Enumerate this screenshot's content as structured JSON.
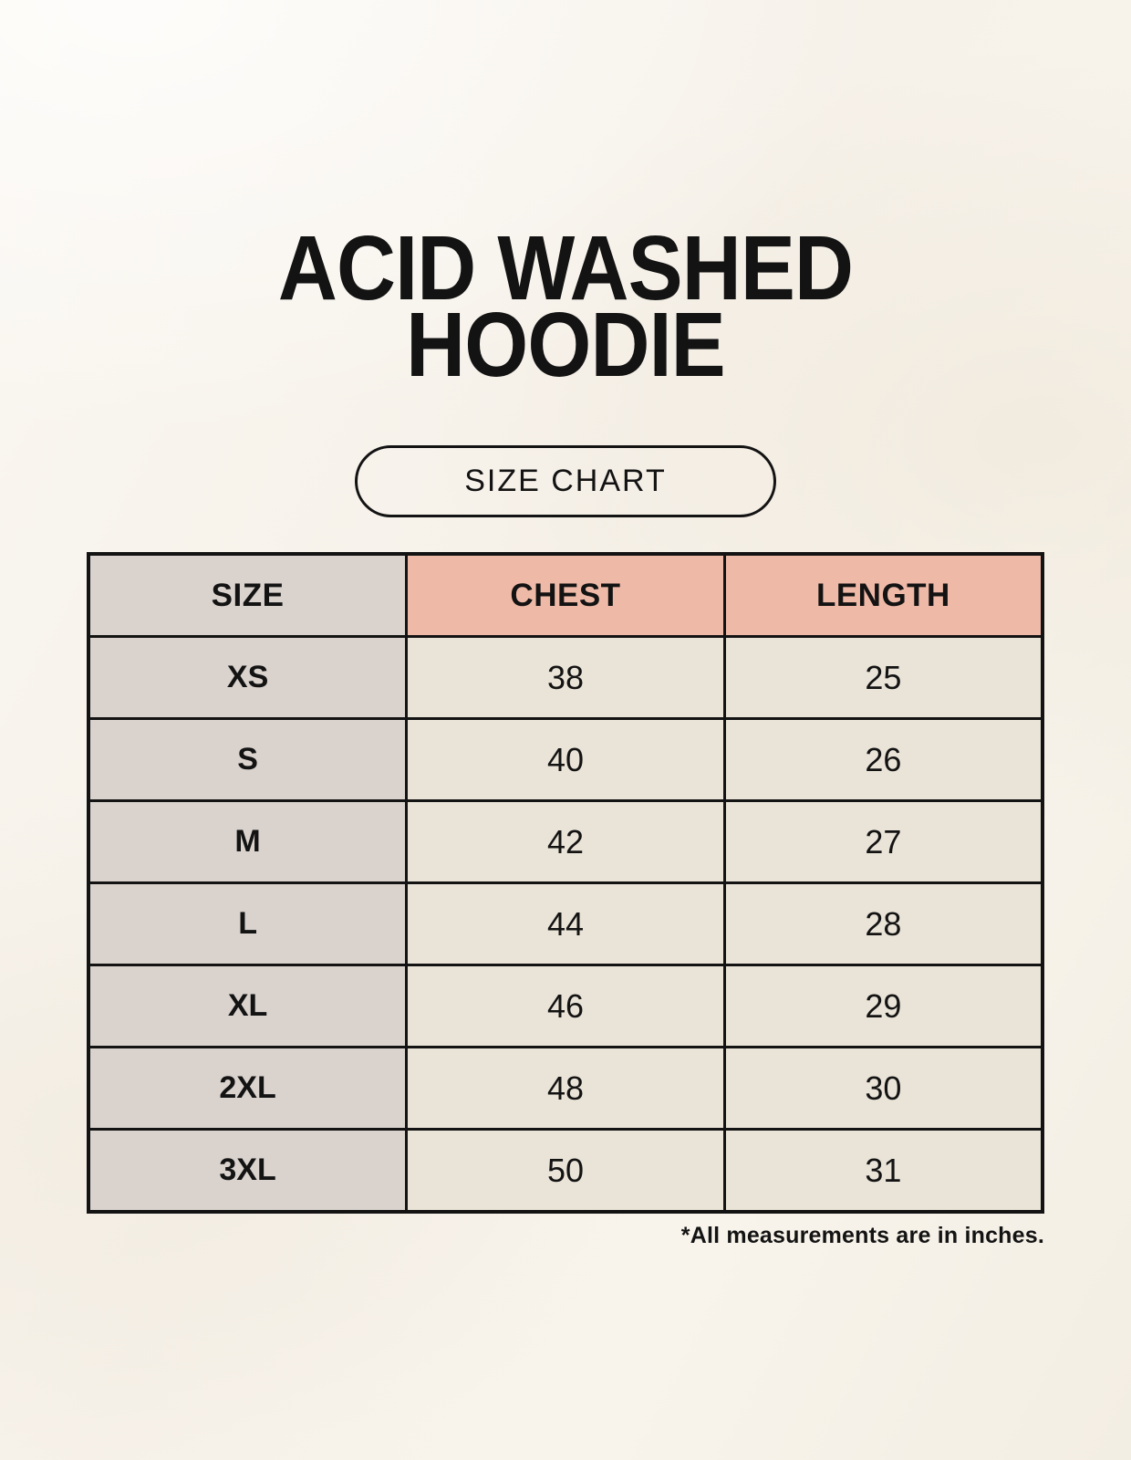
{
  "page": {
    "title_line1": "ACID WASHED",
    "title_line2": "HOODIE",
    "size_chart_button": "SIZE CHART",
    "footnote": "*All measurements are in inches."
  },
  "colors": {
    "page_bg": "#f7f3ec",
    "text": "#131313",
    "table_border": "#131313",
    "accent_header_bg": "#efb9a7",
    "label_column_bg": "#d9d2cd",
    "value_cell_bg": "#eae3d7"
  },
  "chart_data": {
    "type": "table",
    "title": "ACID WASHED HOODIE",
    "columns": [
      "SIZE",
      "CHEST",
      "LENGTH"
    ],
    "rows": [
      {
        "size": "XS",
        "chest": "38",
        "length": "25"
      },
      {
        "size": "S",
        "chest": "40",
        "length": "26"
      },
      {
        "size": "M",
        "chest": "42",
        "length": "27"
      },
      {
        "size": "L",
        "chest": "44",
        "length": "28"
      },
      {
        "size": "XL",
        "chest": "46",
        "length": "29"
      },
      {
        "size": "2XL",
        "chest": "48",
        "length": "30"
      },
      {
        "size": "3XL",
        "chest": "50",
        "length": "31"
      }
    ],
    "units": "inches",
    "note": "*All measurements are in inches."
  }
}
